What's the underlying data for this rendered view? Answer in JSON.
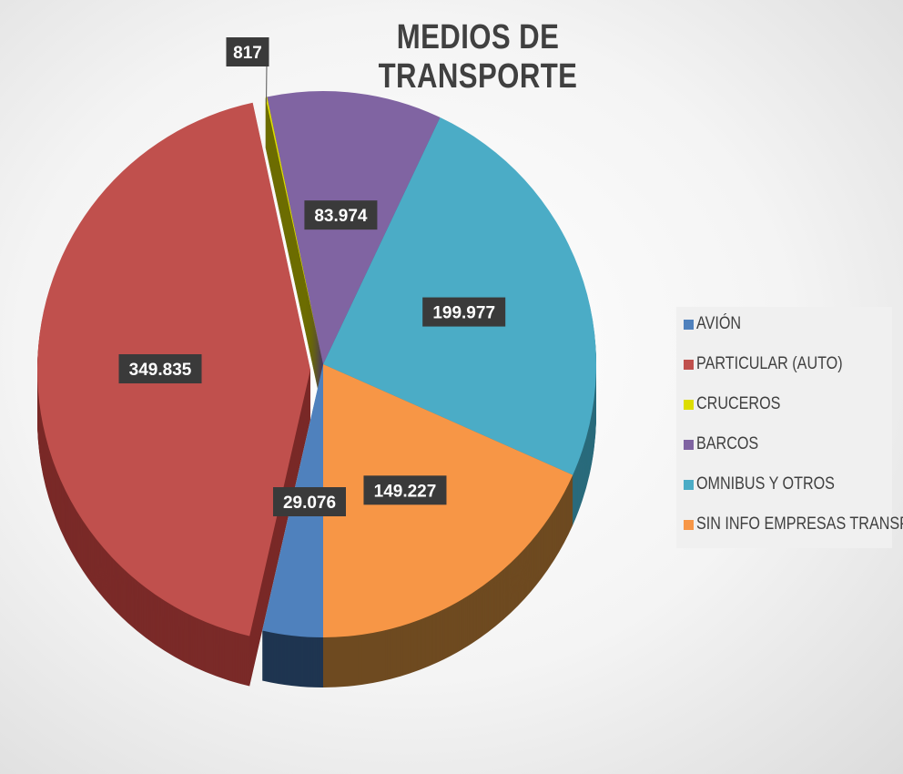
{
  "chart_data": {
    "type": "pie",
    "title": "MEDIOS DE TRANSPORTE",
    "legend_position": "right",
    "categories": [
      "AVIÓN",
      "PARTICULAR (AUTO)",
      "CRUCEROS",
      "BARCOS",
      "OMNIBUS Y OTROS",
      "SIN INFO EMPRESAS TRANSP."
    ],
    "values": [
      29076,
      349835,
      817,
      83974,
      199977,
      149227
    ],
    "data_labels": [
      "29.076",
      "349.835",
      "817",
      "83.974",
      "199.977",
      "149.227"
    ],
    "colors": [
      "#4f81bd",
      "#c0504d",
      "#dddd00",
      "#8064a2",
      "#4bacc6",
      "#f79646"
    ],
    "side_colors": [
      "#1f3550",
      "#7a2a28",
      "#6d6d00",
      "#4a3866",
      "#2a6b7c",
      "#6e4a20"
    ]
  }
}
